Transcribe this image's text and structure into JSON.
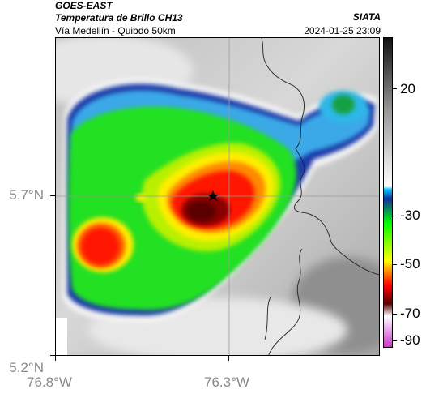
{
  "header": {
    "title_line1": "GOES-EAST",
    "title_line2": "Temperatura de Brillo CH13",
    "subtitle": "Vía Medellín - Quibdó 50km",
    "agency": "SIATA",
    "timestamp": "2024-01-25 23:09"
  },
  "axes": {
    "y_ticks": [
      "5.7°N",
      "5.2°N"
    ],
    "x_ticks": [
      "76.8°W",
      "76.3°W"
    ]
  },
  "colorbar": {
    "labels": [
      "20",
      "-30",
      "-50",
      "-70",
      "-90"
    ],
    "palette": [
      "#111111",
      "#9a9a9a",
      "#ffffff",
      "#00c8ff",
      "#1030a0",
      "#00ff00",
      "#ffff00",
      "#ff0000",
      "#5a0000",
      "#ffffff",
      "#cc33cc"
    ]
  },
  "map": {
    "marker": "star-marker",
    "background_gray": "#d0d0d0"
  }
}
